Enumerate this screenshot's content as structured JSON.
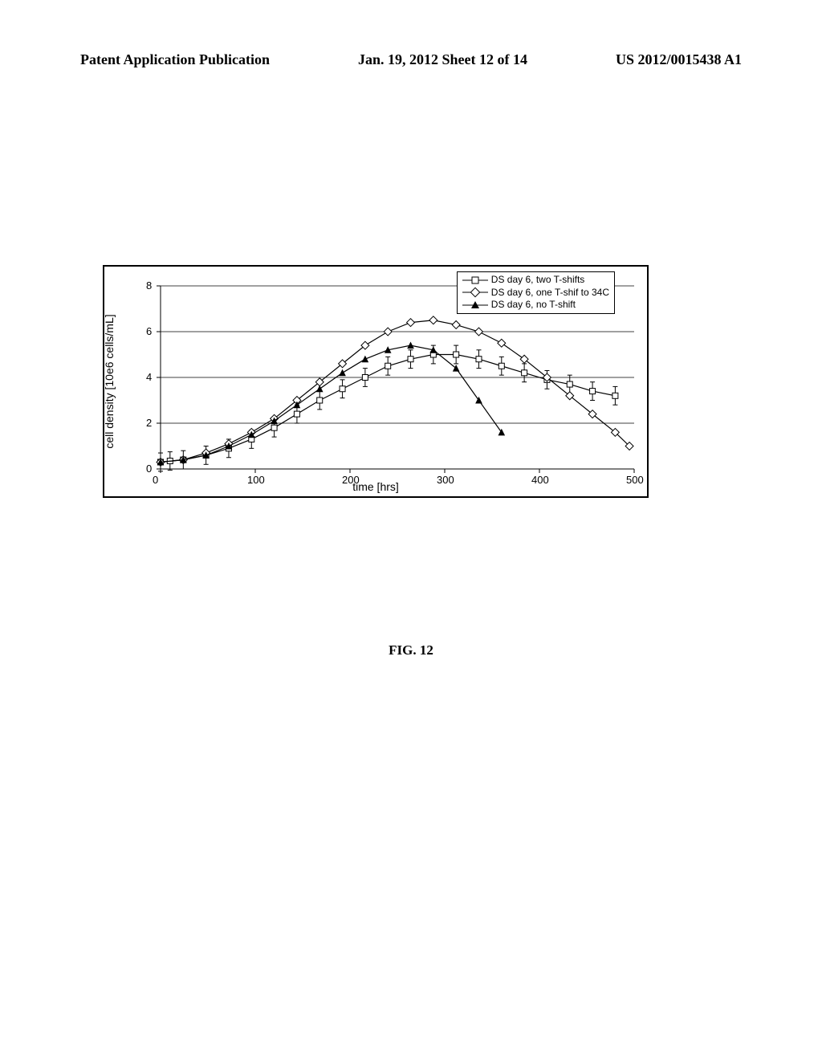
{
  "header": {
    "left": "Patent Application Publication",
    "center": "Jan. 19, 2012  Sheet 12 of 14",
    "right": "US 2012/0015438 A1"
  },
  "figure_label": "FIG. 12",
  "chart": {
    "type": "line",
    "xlabel": "time [hrs]",
    "ylabel": "cell density [10e6 cells/mL]",
    "xlim": [
      0,
      500
    ],
    "ylim": [
      0,
      8
    ],
    "xtick_step": 100,
    "ytick_step": 2,
    "background_color": "#ffffff",
    "grid_color": "#000000",
    "axis_color": "#000000",
    "line_color": "#000000",
    "marker_size": 7,
    "line_width": 1.2,
    "error_bar_color": "#000000",
    "legend": {
      "position": "top-right",
      "border_color": "#000000",
      "items": [
        {
          "label": "DS day 6, two T-shifts",
          "marker": "square"
        },
        {
          "label": "DS day 6, one T-shif to 34C",
          "marker": "diamond"
        },
        {
          "label": "DS day 6, no T-shift",
          "marker": "triangle"
        }
      ]
    },
    "series": [
      {
        "name": "two_T_shifts",
        "marker": "square",
        "marker_fill": "#ffffff",
        "marker_stroke": "#000000",
        "has_error_bars": true,
        "error_bar_magnitude": 0.4,
        "x": [
          0,
          10,
          24,
          48,
          72,
          96,
          120,
          144,
          168,
          192,
          216,
          240,
          264,
          288,
          312,
          336,
          360,
          384,
          408,
          432,
          456,
          480
        ],
        "y": [
          0.3,
          0.35,
          0.4,
          0.6,
          0.9,
          1.3,
          1.8,
          2.4,
          3.0,
          3.5,
          4.0,
          4.5,
          4.8,
          5.0,
          5.0,
          4.8,
          4.5,
          4.2,
          3.9,
          3.7,
          3.4,
          3.2
        ]
      },
      {
        "name": "one_T_shift_34C",
        "marker": "diamond",
        "marker_fill": "#ffffff",
        "marker_stroke": "#000000",
        "has_error_bars": false,
        "x": [
          0,
          24,
          48,
          72,
          96,
          120,
          144,
          168,
          192,
          216,
          240,
          264,
          288,
          312,
          336,
          360,
          384,
          408,
          432,
          456,
          480,
          495
        ],
        "y": [
          0.3,
          0.4,
          0.7,
          1.1,
          1.6,
          2.2,
          3.0,
          3.8,
          4.6,
          5.4,
          6.0,
          6.4,
          6.5,
          6.3,
          6.0,
          5.5,
          4.8,
          4.0,
          3.2,
          2.4,
          1.6,
          1.0
        ]
      },
      {
        "name": "no_T_shift",
        "marker": "triangle",
        "marker_fill": "#000000",
        "marker_stroke": "#000000",
        "has_error_bars": false,
        "x": [
          0,
          24,
          48,
          72,
          96,
          120,
          144,
          168,
          192,
          216,
          240,
          264,
          288,
          312,
          336,
          360
        ],
        "y": [
          0.3,
          0.4,
          0.6,
          1.0,
          1.5,
          2.1,
          2.8,
          3.5,
          4.2,
          4.8,
          5.2,
          5.4,
          5.2,
          4.4,
          3.0,
          1.6
        ]
      }
    ]
  }
}
